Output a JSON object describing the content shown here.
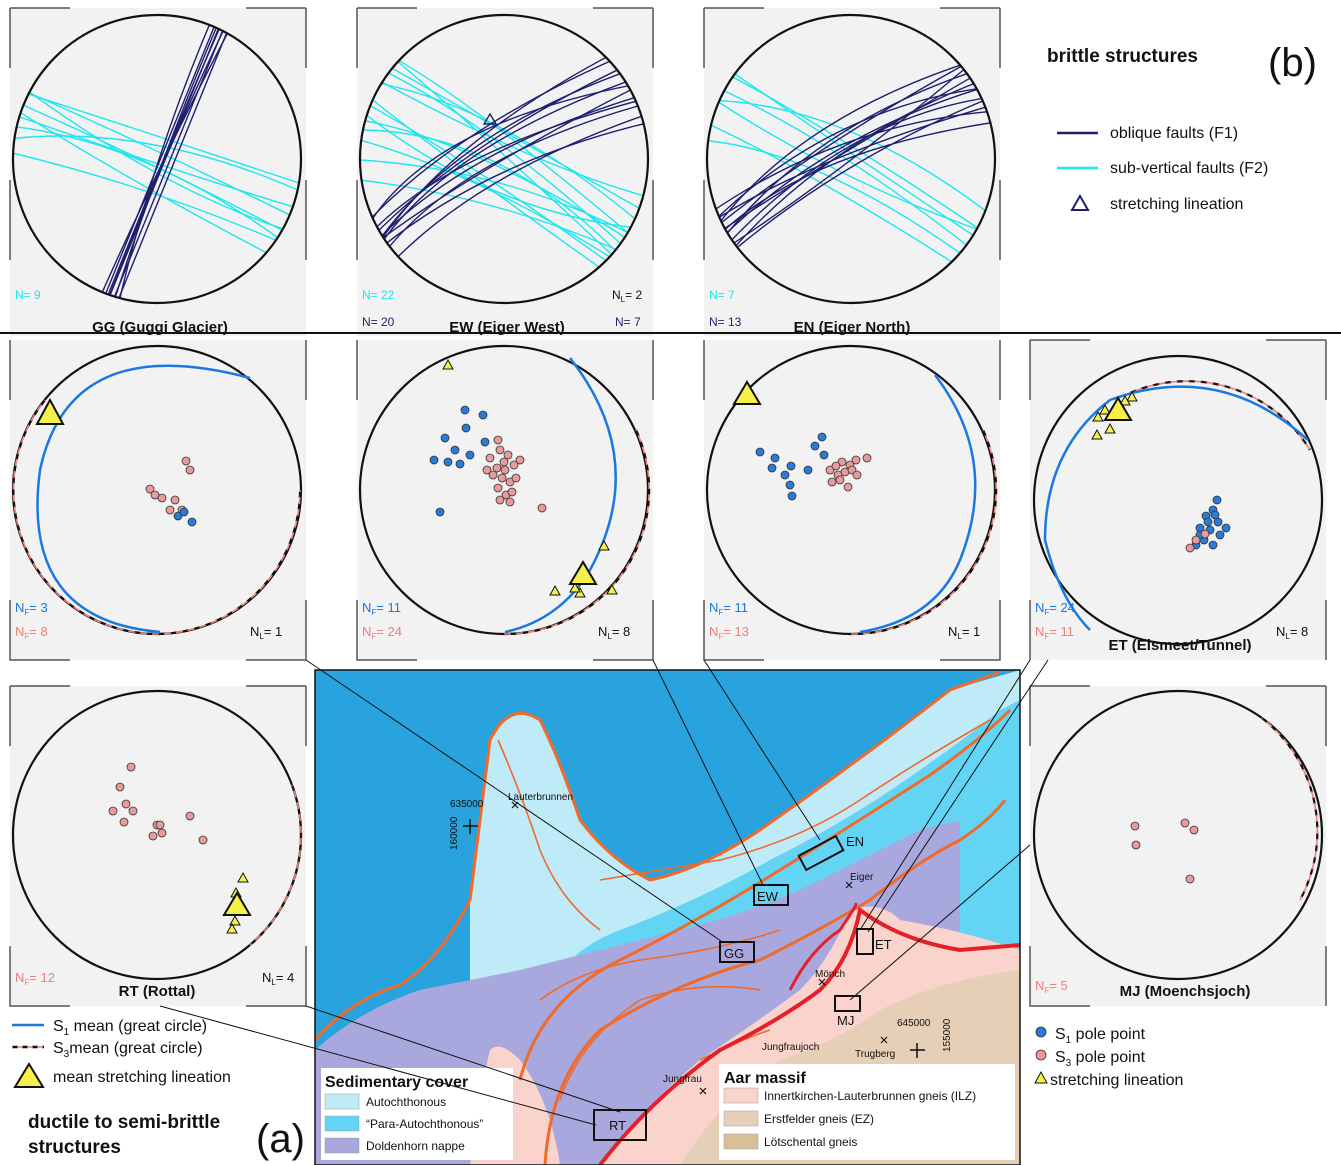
{
  "colors": {
    "f1": "#1f1f6e",
    "f2": "#1ee6ee",
    "s1": "#1a78e0",
    "s3": "#f07f78",
    "s3_dot": "#e99a9a",
    "s1_dot": "#2a7ad8",
    "yellow": "#f5f04a",
    "panel_bg": "#f2f2f2",
    "lake": "#29a3de",
    "autochthonous": "#bfeaf7",
    "para": "#64d4f5",
    "doldenhorn": "#a9a8de",
    "ilz": "#fad4cc",
    "ez": "#e5cfb6",
    "lotschental": "#d8bf9a",
    "boundary": "#f06a2a",
    "thrust": "#e5202a"
  },
  "brittle": {
    "title": "brittle structures",
    "label": "(b)",
    "legend": [
      {
        "name": "legend-oblique-faults",
        "label": "oblique faults (F1)",
        "symbol": "line-f1"
      },
      {
        "name": "legend-subvertical-faults",
        "label": "sub-vertical faults (F2)",
        "symbol": "line-f2"
      },
      {
        "name": "legend-stretching-lineation",
        "label": "stretching lineation",
        "symbol": "triangle-outline"
      }
    ]
  },
  "ductile": {
    "title_line1": "ductile to semi-brittle",
    "title_line2": "structures",
    "label": "(a)",
    "legend_left": [
      {
        "label": "S₁ mean (great circle)"
      },
      {
        "label": "S₃ mean (great circle)"
      },
      {
        "label": "mean stretching lineation"
      }
    ],
    "legend_right": [
      {
        "label": "S₁ pole point"
      },
      {
        "label": "S₃ pole point"
      },
      {
        "label": "stretching lineation"
      }
    ]
  },
  "panels": {
    "gg_b": {
      "title": "GG (Guggi Glacier)",
      "n2": "N= 9",
      "n1": "",
      "nl": ""
    },
    "ew_b": {
      "title": "EW (Eiger West)",
      "n2": "N= 22",
      "n1": "N= 20",
      "nl": "N₁= 2",
      "nl_r": "N= 7"
    },
    "en_b": {
      "title": "EN (Eiger North)",
      "n2": "N= 7",
      "n1": "N= 13"
    },
    "gg_a": {
      "nf1": "N_F= 3",
      "nf3": "N_F= 8",
      "nl": "N_L= 1"
    },
    "ew_a": {
      "nf1": "N_F= 11",
      "nf3": "N_F= 24",
      "nl": "N_L= 8"
    },
    "en_a": {
      "nf1": "N_F= 11",
      "nf3": "N_F= 13",
      "nl": "N_L= 1"
    },
    "et_a": {
      "title": "ET (Eismeet/Tunnel)",
      "nf1": "N_F= 24",
      "nf3": "N_F= 11",
      "nl": "N_L= 8"
    },
    "rt_a": {
      "title": "RT (Rottal)",
      "nf3": "N_F= 12",
      "nl": "N_L= 4"
    },
    "mj_a": {
      "title": "MJ (Moenchsjoch)",
      "nf3": "N_F= 5"
    }
  },
  "map": {
    "places": [
      "Lauterbrunnen",
      "Eiger",
      "Mönch",
      "Jungfraujoch",
      "Trugberg",
      "Jungfrau"
    ],
    "coord_x1": "635000",
    "coord_y1": "160000",
    "coord_x2": "645000",
    "coord_y2": "155000",
    "boxes": [
      "EN",
      "EW",
      "GG",
      "ET",
      "MJ",
      "RT"
    ],
    "sed_title": "Sedimentary cover",
    "sed_units": [
      "Autochthonous",
      "“Para-Autochthonous”",
      "Doldenhorn nappe"
    ],
    "aar_title": "Aar massif",
    "aar_units": [
      "Innertkirchen-Lauterbrunnen gneis (ILZ)",
      "Erstfelder gneis (EZ)",
      "Lötschental gneis"
    ]
  }
}
